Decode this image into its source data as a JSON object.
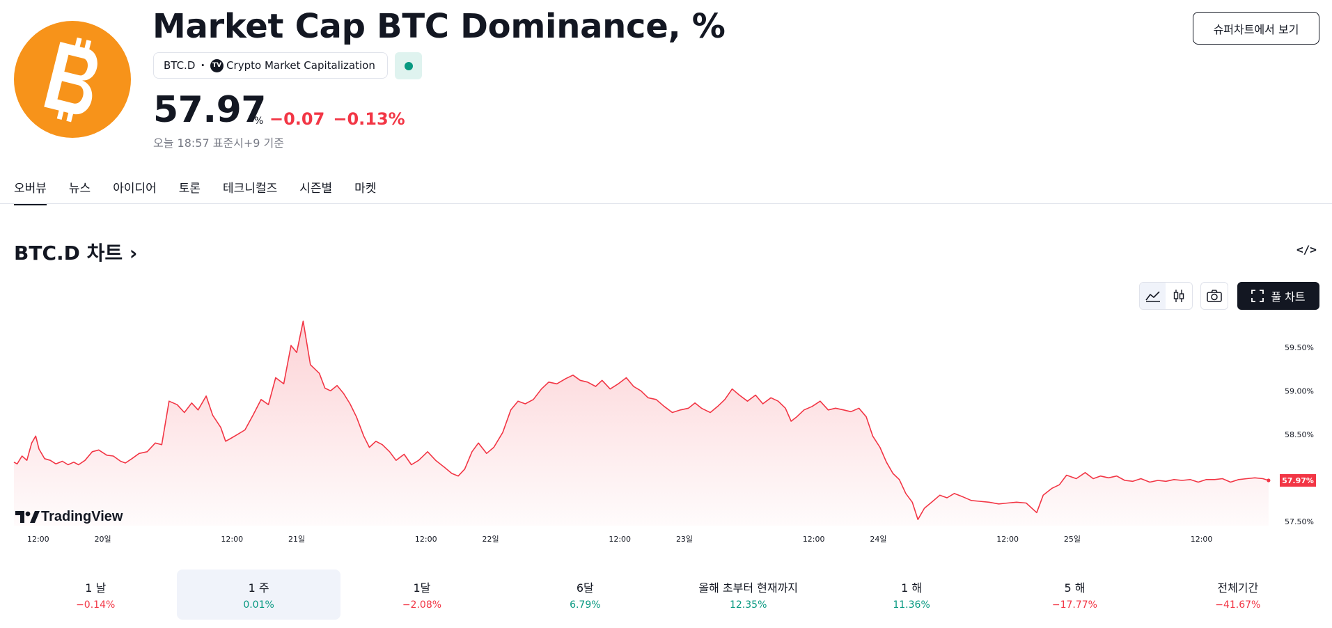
{
  "header": {
    "title": "Market Cap BTC Dominance, %",
    "symbol": "BTC.D",
    "exchange": "Crypto Market Capitalization",
    "exchange_icon": "TV",
    "price": "57.97",
    "unit": "%",
    "change_abs": "−0.07",
    "change_pct": "−0.13%",
    "as_of": "오늘 18:57 표준시+9 기준",
    "status_color": "#089981",
    "superchart_button": "슈퍼차트에서 보기"
  },
  "tabs": [
    "오버뷰",
    "뉴스",
    "아이디어",
    "토론",
    "테크니컬즈",
    "시즌별",
    "마켓"
  ],
  "chart_section": {
    "heading": "BTC.D 차트",
    "heading_chevron": "›",
    "embed_icon": "</>",
    "fullchart_button": "풀 차트",
    "icons": [
      "area-chart-icon",
      "candles-icon",
      "camera-icon",
      "fullscreen-icon",
      "embed-icon"
    ],
    "watermark": "TradingView",
    "price_tag": "57.97%"
  },
  "periods": [
    {
      "label": "1 날",
      "value": "−0.14%",
      "positive": false
    },
    {
      "label": "1 주",
      "value": "0.01%",
      "positive": true,
      "active": true
    },
    {
      "label": "1달",
      "value": "−2.08%",
      "positive": false
    },
    {
      "label": "6달",
      "value": "6.79%",
      "positive": true
    },
    {
      "label": "올해 초부터 현재까지",
      "value": "12.35%",
      "positive": true
    },
    {
      "label": "1 해",
      "value": "11.36%",
      "positive": true
    },
    {
      "label": "5 해",
      "value": "−17.77%",
      "positive": false
    },
    {
      "label": "전체기간",
      "value": "−41.67%",
      "positive": false
    }
  ],
  "colors": {
    "accent": "#f23645",
    "positive": "#089981",
    "negative": "#f23645",
    "brand": "#f7931a"
  },
  "chart_data": {
    "type": "area",
    "x_tick_labels": [
      "12:00",
      "20일",
      "12:00",
      "21일",
      "12:00",
      "22일",
      "12:00",
      "23일",
      "12:00",
      "24일",
      "12:00",
      "25일",
      "12:00"
    ],
    "y_tick_labels": [
      "59.50%",
      "59.00%",
      "58.50%",
      "57.50%"
    ],
    "y_ticks": [
      59.5,
      59.0,
      58.5,
      57.5
    ],
    "ylim": [
      57.45,
      59.85
    ],
    "x_units": "hours since chart start",
    "x_ticks": [
      4,
      12,
      28,
      36,
      52,
      60,
      76,
      84,
      100,
      108,
      124,
      132,
      148
    ],
    "xlim": [
      1,
      157
    ],
    "series": [
      {
        "values": [
          [
            1.0,
            58.18
          ],
          [
            1.4,
            58.16
          ],
          [
            2.0,
            58.25
          ],
          [
            2.6,
            58.2
          ],
          [
            3.2,
            58.4
          ],
          [
            3.7,
            58.48
          ],
          [
            4.1,
            58.33
          ],
          [
            4.8,
            58.22
          ],
          [
            5.5,
            58.2
          ],
          [
            6.2,
            58.16
          ],
          [
            7.0,
            58.19
          ],
          [
            7.7,
            58.15
          ],
          [
            8.4,
            58.18
          ],
          [
            9.0,
            58.15
          ],
          [
            9.8,
            58.2
          ],
          [
            10.7,
            58.3
          ],
          [
            11.5,
            58.32
          ],
          [
            12.5,
            58.26
          ],
          [
            13.3,
            58.25
          ],
          [
            14.2,
            58.19
          ],
          [
            14.8,
            58.17
          ],
          [
            15.6,
            58.22
          ],
          [
            16.5,
            58.28
          ],
          [
            17.5,
            58.3
          ],
          [
            18.5,
            58.4
          ],
          [
            19.3,
            58.38
          ],
          [
            20.2,
            58.88
          ],
          [
            21.2,
            58.84
          ],
          [
            22.1,
            58.75
          ],
          [
            23.0,
            58.86
          ],
          [
            23.8,
            58.78
          ],
          [
            24.8,
            58.94
          ],
          [
            25.6,
            58.72
          ],
          [
            26.6,
            58.58
          ],
          [
            27.2,
            58.42
          ],
          [
            27.8,
            58.45
          ],
          [
            28.7,
            58.5
          ],
          [
            29.6,
            58.55
          ],
          [
            30.6,
            58.72
          ],
          [
            31.6,
            58.9
          ],
          [
            32.5,
            58.84
          ],
          [
            33.4,
            59.15
          ],
          [
            34.4,
            59.08
          ],
          [
            35.3,
            59.52
          ],
          [
            36.0,
            59.44
          ],
          [
            36.8,
            59.8
          ],
          [
            37.7,
            59.3
          ],
          [
            38.8,
            59.2
          ],
          [
            39.5,
            59.03
          ],
          [
            40.2,
            59.0
          ],
          [
            41.0,
            59.06
          ],
          [
            41.8,
            58.97
          ],
          [
            42.6,
            58.85
          ],
          [
            43.4,
            58.7
          ],
          [
            44.3,
            58.48
          ],
          [
            45.0,
            58.35
          ],
          [
            45.8,
            58.42
          ],
          [
            46.6,
            58.38
          ],
          [
            47.5,
            58.3
          ],
          [
            48.3,
            58.2
          ],
          [
            49.3,
            58.27
          ],
          [
            50.2,
            58.15
          ],
          [
            51.1,
            58.2
          ],
          [
            52.2,
            58.3
          ],
          [
            53.2,
            58.2
          ],
          [
            54.3,
            58.12
          ],
          [
            55.2,
            58.05
          ],
          [
            56.0,
            58.02
          ],
          [
            56.8,
            58.1
          ],
          [
            57.7,
            58.3
          ],
          [
            58.5,
            58.4
          ],
          [
            59.5,
            58.28
          ],
          [
            60.4,
            58.35
          ],
          [
            61.5,
            58.52
          ],
          [
            62.5,
            58.78
          ],
          [
            63.4,
            58.88
          ],
          [
            64.3,
            58.85
          ],
          [
            65.3,
            58.9
          ],
          [
            66.3,
            59.02
          ],
          [
            67.2,
            59.1
          ],
          [
            68.2,
            59.08
          ],
          [
            69.3,
            59.14
          ],
          [
            70.2,
            59.18
          ],
          [
            71.1,
            59.12
          ],
          [
            72.0,
            59.1
          ],
          [
            73.0,
            59.05
          ],
          [
            73.8,
            59.12
          ],
          [
            74.8,
            59.02
          ],
          [
            75.8,
            59.08
          ],
          [
            76.8,
            59.15
          ],
          [
            77.7,
            59.05
          ],
          [
            78.6,
            59.0
          ],
          [
            79.5,
            58.92
          ],
          [
            80.5,
            58.9
          ],
          [
            81.5,
            58.82
          ],
          [
            82.5,
            58.75
          ],
          [
            83.5,
            58.78
          ],
          [
            84.5,
            58.8
          ],
          [
            85.3,
            58.86
          ],
          [
            86.1,
            58.8
          ],
          [
            87.2,
            58.75
          ],
          [
            88.1,
            58.82
          ],
          [
            89.0,
            58.9
          ],
          [
            89.9,
            59.02
          ],
          [
            90.8,
            58.95
          ],
          [
            91.8,
            58.88
          ],
          [
            92.8,
            58.95
          ],
          [
            93.7,
            58.85
          ],
          [
            94.7,
            58.92
          ],
          [
            95.6,
            58.88
          ],
          [
            96.5,
            58.8
          ],
          [
            97.2,
            58.65
          ],
          [
            97.9,
            58.7
          ],
          [
            98.8,
            58.78
          ],
          [
            99.8,
            58.82
          ],
          [
            100.8,
            58.88
          ],
          [
            101.8,
            58.78
          ],
          [
            102.7,
            58.8
          ],
          [
            103.7,
            58.78
          ],
          [
            104.6,
            58.76
          ],
          [
            105.6,
            58.8
          ],
          [
            106.5,
            58.7
          ],
          [
            107.3,
            58.48
          ],
          [
            108.2,
            58.35
          ],
          [
            109.0,
            58.18
          ],
          [
            109.8,
            58.05
          ],
          [
            110.6,
            57.98
          ],
          [
            111.4,
            57.82
          ],
          [
            112.2,
            57.72
          ],
          [
            112.9,
            57.52
          ],
          [
            113.7,
            57.65
          ],
          [
            114.6,
            57.72
          ],
          [
            115.6,
            57.8
          ],
          [
            116.5,
            57.77
          ],
          [
            117.4,
            57.82
          ],
          [
            118.5,
            57.78
          ],
          [
            119.5,
            57.74
          ],
          [
            120.5,
            57.73
          ],
          [
            121.7,
            57.72
          ],
          [
            122.9,
            57.7
          ],
          [
            124.0,
            57.71
          ],
          [
            125.1,
            57.72
          ],
          [
            126.3,
            57.71
          ],
          [
            127.6,
            57.6
          ],
          [
            128.4,
            57.8
          ],
          [
            129.5,
            57.88
          ],
          [
            130.4,
            57.92
          ],
          [
            131.3,
            58.03
          ],
          [
            132.5,
            57.99
          ],
          [
            133.6,
            58.06
          ],
          [
            134.6,
            57.99
          ],
          [
            135.5,
            58.02
          ],
          [
            136.5,
            58.0
          ],
          [
            137.5,
            58.02
          ],
          [
            138.5,
            57.97
          ],
          [
            139.5,
            57.96
          ],
          [
            140.5,
            57.99
          ],
          [
            141.6,
            57.95
          ],
          [
            142.6,
            57.97
          ],
          [
            143.6,
            57.96
          ],
          [
            144.6,
            57.98
          ],
          [
            145.6,
            57.97
          ],
          [
            146.6,
            57.98
          ],
          [
            147.6,
            57.95
          ],
          [
            148.6,
            57.98
          ],
          [
            149.6,
            57.98
          ],
          [
            150.6,
            57.99
          ],
          [
            151.6,
            57.95
          ],
          [
            152.6,
            57.98
          ],
          [
            153.6,
            57.99
          ],
          [
            154.6,
            58.0
          ],
          [
            155.6,
            57.99
          ],
          [
            156.3,
            57.97
          ]
        ]
      }
    ],
    "grid": false,
    "legend": "none"
  }
}
